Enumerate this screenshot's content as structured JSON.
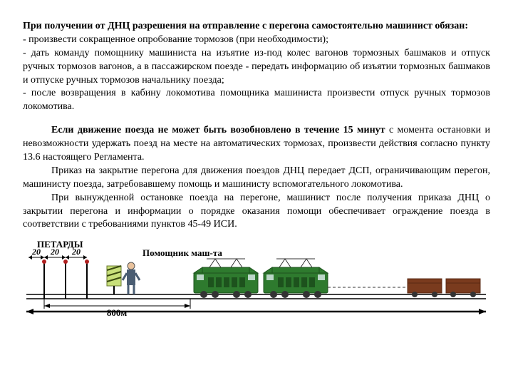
{
  "text": {
    "heading": "При получении от ДНЦ разрешения на отправление с перегона самостоятельно машинист обязан:",
    "b1": "- произвести сокращенное опробование тормозов (при необходимости);",
    "b2": "- дать команду помощнику машиниста на изъятие из-под колес вагонов тормозных башмаков и отпуск ручных тормозов вагонов, а в пассажирском поезде - передать информацию об изъятии тормозных башмаков и отпуске ручных тормозов начальнику поезда;",
    "b3": "- после возвращения в кабину локомотива помощника машиниста произвести отпуск ручных тормозов локомотива.",
    "p2a": "Если движение поезда не может быть возобновлено в течение 15 минут",
    "p2b": " с момента остановки и невозможности удержать поезд на месте на автоматических тормозах, произвести действия согласно пункту 13.6 настоящего Регламента.",
    "p3": "Приказ на закрытие перегона для движения поездов ДНЦ передает ДСП, ограничивающим перегон, машинисту поезда, затребовавшему помощь и машинисту вспомогательного локомотива.",
    "p4": "При вынужденной остановке поезда на перегоне, машинист после получения приказа ДНЦ о закрытии перегона и информации о порядке оказания помощи обеспечивает ограждение поезда в соответствии с требованиями пунктов 45-49 ИСИ."
  },
  "diagram": {
    "bg": "#ffffff",
    "track_color": "#000000",
    "petard_label": "ПЕТАРДЫ",
    "assistant_label": "Помощник маш-та",
    "dist_800": "800м",
    "dist_20a": "20",
    "dist_20b": "20",
    "dist_20c": "20",
    "loco_body": "#2e7a2e",
    "loco_dark": "#1d521d",
    "wagon_body": "#7a3b1e",
    "wagon_dark": "#5a2a14",
    "sign_bg": "#c8e07a",
    "person_coat": "#4a5d73",
    "person_skin": "#e9c29c",
    "label_color": "#000000",
    "label_font": 13,
    "dist_font": 13
  }
}
